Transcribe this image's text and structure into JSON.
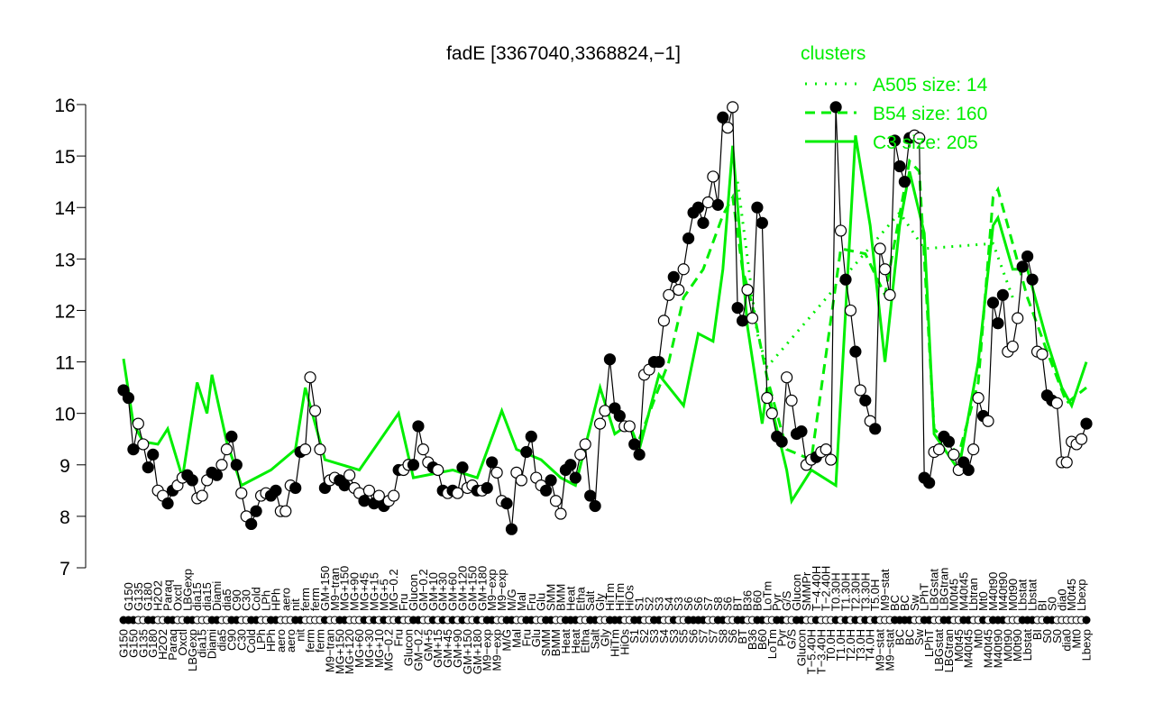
{
  "chart_data": {
    "type": "line",
    "title": "fadE [3367040,3368824,−1]",
    "xlabel": "",
    "ylabel": "",
    "ylim": [
      7,
      16
    ],
    "yticks": [
      "7",
      "8",
      "9",
      "10",
      "11",
      "12",
      "13",
      "14",
      "15",
      "16"
    ],
    "legend": {
      "title": "clusters",
      "placement": "top-right",
      "entries": [
        {
          "label": "A505 size: 14",
          "style": "dotted"
        },
        {
          "label": "B54 size: 160",
          "style": "dashed"
        },
        {
          "label": "C3 size: 205",
          "style": "solid"
        }
      ]
    },
    "colors": {
      "cluster": "#00ee00",
      "line": "#000000",
      "axis": "#000000"
    },
    "points": [
      [
        "G150",
        10.45,
        1
      ],
      [
        "G150",
        10.3,
        1
      ],
      [
        "G150",
        9.3,
        1
      ],
      [
        "G135",
        9.8,
        0
      ],
      [
        "G135",
        9.4,
        0
      ],
      [
        "G180",
        8.95,
        1
      ],
      [
        "G180",
        9.2,
        1
      ],
      [
        "H2O2",
        8.5,
        0
      ],
      [
        "H2O2",
        8.4,
        0
      ],
      [
        "Paraq",
        8.25,
        1
      ],
      [
        "Paraq",
        8.5,
        1
      ],
      [
        "Oxctl",
        8.6,
        0
      ],
      [
        "Oxctl",
        8.75,
        0
      ],
      [
        "LBGexp",
        8.8,
        1
      ],
      [
        "LBGexp",
        8.7,
        1
      ],
      [
        "dia15",
        8.35,
        0
      ],
      [
        "dia15",
        8.4,
        0
      ],
      [
        "dia15",
        8.7,
        0
      ],
      [
        "Diami",
        8.85,
        1
      ],
      [
        "Diami",
        8.8,
        1
      ],
      [
        "dia5",
        9.0,
        0
      ],
      [
        "dia5",
        9.3,
        0
      ],
      [
        "C90",
        9.55,
        1
      ],
      [
        "C90",
        9.0,
        1
      ],
      [
        "C30",
        8.45,
        0
      ],
      [
        "C30",
        8.0,
        0
      ],
      [
        "Cold",
        7.85,
        1
      ],
      [
        "Cold",
        8.1,
        1
      ],
      [
        "LPh",
        8.4,
        0
      ],
      [
        "LPh",
        8.45,
        0
      ],
      [
        "HPh",
        8.4,
        1
      ],
      [
        "HPh",
        8.5,
        1
      ],
      [
        "aero",
        8.1,
        0
      ],
      [
        "aero",
        8.1,
        0
      ],
      [
        "aero",
        8.6,
        0
      ],
      [
        "nit",
        8.55,
        1
      ],
      [
        "nit",
        9.25,
        1
      ],
      [
        "ferm",
        9.3,
        0
      ],
      [
        "ferm",
        10.7,
        0
      ],
      [
        "ferm",
        10.05,
        0
      ],
      [
        "ferm",
        9.3,
        0
      ],
      [
        "GM+150",
        8.55,
        1
      ],
      [
        "M9−tran",
        8.7,
        0
      ],
      [
        "M9−tran",
        8.75,
        0
      ],
      [
        "MG+150",
        8.7,
        1
      ],
      [
        "MG+150",
        8.6,
        1
      ],
      [
        "MG+120",
        8.8,
        0
      ],
      [
        "MG+90",
        8.55,
        0
      ],
      [
        "MG+60",
        8.45,
        0
      ],
      [
        "MG+45",
        8.3,
        1
      ],
      [
        "MG+30",
        8.5,
        0
      ],
      [
        "MG+15",
        8.25,
        1
      ],
      [
        "MG+10",
        8.4,
        0
      ],
      [
        "MG+5",
        8.2,
        1
      ],
      [
        "MG−0.2",
        8.3,
        0
      ],
      [
        "MG−0.2",
        8.4,
        0
      ],
      [
        "Fru",
        8.9,
        1
      ],
      [
        "Fru",
        8.9,
        0
      ],
      [
        "Glucon",
        9.0,
        0
      ],
      [
        "Glucon",
        9.0,
        1
      ],
      [
        "GM−0.2",
        9.75,
        1
      ],
      [
        "GM−0.2",
        9.3,
        0
      ],
      [
        "GM+5",
        9.05,
        0
      ],
      [
        "GM+10",
        8.95,
        1
      ],
      [
        "GM+15",
        8.9,
        0
      ],
      [
        "GM+30",
        8.5,
        1
      ],
      [
        "GM+45",
        8.45,
        0
      ],
      [
        "GM+60",
        8.5,
        1
      ],
      [
        "GM+90",
        8.45,
        0
      ],
      [
        "GM+120",
        8.95,
        1
      ],
      [
        "GM+150",
        8.55,
        0
      ],
      [
        "GM+150",
        8.6,
        0
      ],
      [
        "GM+180",
        8.5,
        1
      ],
      [
        "GM+180",
        8.5,
        0
      ],
      [
        "M9−exp",
        8.55,
        1
      ],
      [
        "M9−exp",
        9.05,
        1
      ],
      [
        "M9−exp",
        8.85,
        0
      ],
      [
        "M9−exp",
        8.3,
        0
      ],
      [
        "M/G",
        8.25,
        1
      ],
      [
        "M/G",
        7.75,
        1
      ],
      [
        "Mal",
        8.85,
        0
      ],
      [
        "Mal",
        8.7,
        0
      ],
      [
        "Fru",
        9.25,
        1
      ],
      [
        "Fru",
        9.55,
        1
      ],
      [
        "Glu",
        8.75,
        0
      ],
      [
        "Glu",
        8.6,
        0
      ],
      [
        "SMM",
        8.5,
        1
      ],
      [
        "SMM",
        8.7,
        1
      ],
      [
        "BMM",
        8.3,
        0
      ],
      [
        "BMM",
        8.05,
        0
      ],
      [
        "Heat",
        8.9,
        1
      ],
      [
        "Heat",
        9.0,
        1
      ],
      [
        "Heat",
        8.75,
        1
      ],
      [
        "Etha",
        9.2,
        0
      ],
      [
        "Etha",
        9.4,
        0
      ],
      [
        "Salt",
        8.4,
        1
      ],
      [
        "Salt",
        8.2,
        1
      ],
      [
        "Gly",
        9.8,
        0
      ],
      [
        "Gly",
        10.05,
        0
      ],
      [
        "HiTm",
        11.05,
        1
      ],
      [
        "HiTm",
        10.1,
        1
      ],
      [
        "HiTm",
        9.95,
        1
      ],
      [
        "HiOs",
        9.75,
        0
      ],
      [
        "HiOs",
        9.75,
        0
      ],
      [
        "S1",
        9.4,
        1
      ],
      [
        "S1",
        9.2,
        1
      ],
      [
        "S2",
        10.75,
        0
      ],
      [
        "S2",
        10.85,
        0
      ],
      [
        "S3",
        11.0,
        1
      ],
      [
        "S3",
        11.0,
        1
      ],
      [
        "S4",
        11.8,
        0
      ],
      [
        "S4",
        12.3,
        0
      ],
      [
        "S3",
        12.65,
        1
      ],
      [
        "S3",
        12.4,
        0
      ],
      [
        "S5",
        12.8,
        0
      ],
      [
        "S6",
        13.4,
        1
      ],
      [
        "S6",
        13.9,
        1
      ],
      [
        "S6",
        14.0,
        1
      ],
      [
        "S7",
        13.7,
        1
      ],
      [
        "S7",
        14.1,
        0
      ],
      [
        "S7",
        14.6,
        0
      ],
      [
        "S8",
        14.05,
        1
      ],
      [
        "S8",
        15.75,
        1
      ],
      [
        "S6",
        15.55,
        0
      ],
      [
        "S6",
        15.95,
        0
      ],
      [
        "BT",
        12.05,
        1
      ],
      [
        "BT",
        11.8,
        1
      ],
      [
        "B36",
        12.4,
        0
      ],
      [
        "B36",
        11.85,
        0
      ],
      [
        "B60",
        14.0,
        1
      ],
      [
        "B60",
        13.7,
        1
      ],
      [
        "LoTm",
        10.3,
        0
      ],
      [
        "LoTm",
        10.0,
        0
      ],
      [
        "Pyr",
        9.55,
        1
      ],
      [
        "Pyr",
        9.45,
        1
      ],
      [
        "G/S",
        10.7,
        0
      ],
      [
        "G/S",
        10.25,
        0
      ],
      [
        "Glucon",
        9.6,
        1
      ],
      [
        "Glucon",
        9.65,
        1
      ],
      [
        "SMMPr",
        9.0,
        0
      ],
      [
        "T−5.40H",
        9.1,
        0
      ],
      [
        "T−4.40H",
        9.15,
        1
      ],
      [
        "T−3.40H",
        9.25,
        0
      ],
      [
        "T−2.40H",
        9.3,
        0
      ],
      [
        "T0.0H",
        9.1,
        0
      ],
      [
        "T0.30H",
        15.95,
        1
      ],
      [
        "T1.0H",
        13.55,
        0
      ],
      [
        "T1.30H",
        12.6,
        1
      ],
      [
        "T2.0H",
        12.0,
        0
      ],
      [
        "T2.30H",
        11.2,
        1
      ],
      [
        "T3.0H",
        10.45,
        0
      ],
      [
        "T3.30H",
        10.25,
        1
      ],
      [
        "T4.0H",
        9.85,
        0
      ],
      [
        "T5.0H",
        9.7,
        1
      ],
      [
        "M9−stat",
        13.2,
        0
      ],
      [
        "M9−stat",
        12.8,
        0
      ],
      [
        "M9−stat",
        12.3,
        0
      ],
      [
        "BC",
        15.3,
        1
      ],
      [
        "BC",
        14.8,
        1
      ],
      [
        "BC",
        14.5,
        1
      ],
      [
        "BC",
        15.35,
        1
      ],
      [
        "Sw",
        15.4,
        0
      ],
      [
        "Sw",
        15.35,
        0
      ],
      [
        "LPhT",
        8.75,
        1
      ],
      [
        "LPhT",
        8.65,
        1
      ],
      [
        "LBGstat",
        9.25,
        0
      ],
      [
        "LBGstat",
        9.3,
        0
      ],
      [
        "LBGtran",
        9.55,
        1
      ],
      [
        "LBGtran",
        9.45,
        1
      ],
      [
        "M0t45",
        9.2,
        0
      ],
      [
        "M0t45",
        8.9,
        0
      ],
      [
        "M40t45",
        9.05,
        1
      ],
      [
        "M40t45",
        8.9,
        1
      ],
      [
        "Lbtran",
        9.3,
        0
      ],
      [
        "Mt0",
        10.3,
        0
      ],
      [
        "Mt0",
        9.95,
        1
      ],
      [
        "M40t45",
        9.85,
        0
      ],
      [
        "M40t90",
        12.15,
        1
      ],
      [
        "M40t90",
        11.75,
        1
      ],
      [
        "M40t90",
        12.3,
        1
      ],
      [
        "M0t90",
        11.2,
        0
      ],
      [
        "M0t90",
        11.3,
        0
      ],
      [
        "M0t90",
        11.85,
        0
      ],
      [
        "Lbstat",
        12.85,
        1
      ],
      [
        "Lbstat",
        13.05,
        1
      ],
      [
        "Lbstat",
        12.6,
        1
      ],
      [
        "BI",
        11.2,
        0
      ],
      [
        "BI",
        11.15,
        0
      ],
      [
        "S0",
        10.35,
        1
      ],
      [
        "S0",
        10.25,
        1
      ],
      [
        "S0",
        10.2,
        0
      ],
      [
        "dia0",
        9.05,
        0
      ],
      [
        "dia0",
        9.05,
        0
      ],
      [
        "M0t45",
        9.45,
        0
      ],
      [
        "Mt0",
        9.4,
        0
      ],
      [
        "Lbexp",
        9.5,
        0
      ],
      [
        "Lbexp",
        9.8,
        1
      ]
    ],
    "cluster_series": [
      {
        "name": "C3",
        "style": "solid",
        "points": [
          [
            0,
            11.06
          ],
          [
            2,
            9.8
          ],
          [
            4,
            9.45
          ],
          [
            7,
            9.4
          ],
          [
            9,
            9.7
          ],
          [
            12,
            8.75
          ],
          [
            15,
            10.6
          ],
          [
            17,
            10.0
          ],
          [
            18,
            10.75
          ],
          [
            21,
            9.45
          ],
          [
            24,
            8.6
          ],
          [
            30,
            8.9
          ],
          [
            35,
            9.3
          ],
          [
            37,
            10.5
          ],
          [
            41,
            9.1
          ],
          [
            48,
            8.9
          ],
          [
            56,
            10.0
          ],
          [
            59,
            8.75
          ],
          [
            67,
            8.9
          ],
          [
            72,
            8.75
          ],
          [
            77,
            10.05
          ],
          [
            80,
            9.3
          ],
          [
            85,
            9.1
          ],
          [
            89,
            8.75
          ],
          [
            92,
            8.6
          ],
          [
            97,
            10.5
          ],
          [
            100,
            9.6
          ],
          [
            103,
            9.8
          ],
          [
            105,
            9.3
          ],
          [
            109,
            10.75
          ],
          [
            114,
            10.15
          ],
          [
            117,
            11.55
          ],
          [
            120,
            11.4
          ],
          [
            122,
            12.8
          ],
          [
            124,
            15.2
          ],
          [
            127,
            11.7
          ],
          [
            130,
            9.8
          ],
          [
            131,
            10.5
          ],
          [
            135,
            8.9
          ],
          [
            136,
            8.3
          ],
          [
            140,
            8.9
          ],
          [
            145,
            8.6
          ],
          [
            149,
            15.4
          ],
          [
            152,
            13.65
          ],
          [
            155,
            11.0
          ],
          [
            158,
            13.65
          ],
          [
            160,
            14.7
          ],
          [
            163,
            13.5
          ],
          [
            165,
            9.6
          ],
          [
            170,
            8.9
          ],
          [
            174,
            11.0
          ],
          [
            177,
            13.65
          ],
          [
            178,
            13.8
          ],
          [
            181,
            12.8
          ],
          [
            184,
            12.8
          ],
          [
            188,
            11.4
          ],
          [
            191,
            10.5
          ],
          [
            193,
            10.15
          ],
          [
            196,
            11.0
          ]
        ]
      },
      {
        "name": "B54",
        "style": "dashed",
        "points": [
          [
            105,
            9.5
          ],
          [
            111,
            11.0
          ],
          [
            114,
            12.25
          ],
          [
            118,
            12.8
          ],
          [
            122,
            13.85
          ],
          [
            124,
            14.2
          ],
          [
            126,
            12.8
          ],
          [
            128,
            12.1
          ],
          [
            131,
            10.7
          ],
          [
            135,
            9.3
          ],
          [
            140,
            9.1
          ],
          [
            146,
            13.2
          ],
          [
            151,
            13.1
          ],
          [
            155,
            12.3
          ],
          [
            160,
            14.9
          ],
          [
            162,
            14.7
          ],
          [
            165,
            9.7
          ],
          [
            170,
            9.2
          ],
          [
            174,
            10.6
          ],
          [
            177,
            14.2
          ],
          [
            178,
            14.35
          ],
          [
            180,
            13.65
          ],
          [
            184,
            12.25
          ],
          [
            188,
            11.2
          ],
          [
            192,
            10.2
          ],
          [
            196,
            10.5
          ]
        ]
      },
      {
        "name": "A505",
        "style": "dotted",
        "points": [
          [
            125,
            14.5
          ],
          [
            129,
            11.55
          ],
          [
            131,
            10.9
          ],
          [
            158,
            13.9
          ],
          [
            163,
            13.2
          ],
          [
            177,
            13.3
          ],
          [
            181,
            12.25
          ]
        ]
      }
    ]
  }
}
